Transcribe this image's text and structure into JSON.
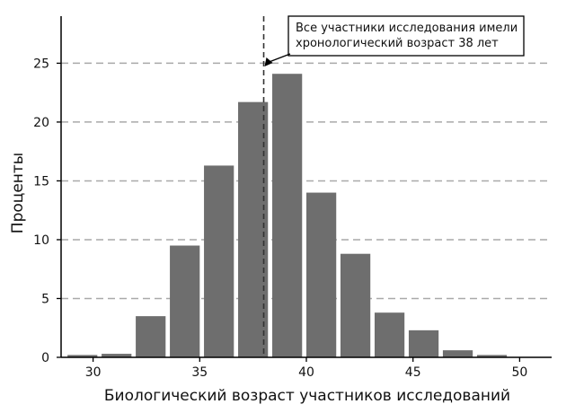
{
  "chart_data": {
    "type": "bar",
    "title": "",
    "xlabel": "Биологический возраст участников исследований",
    "ylabel": "Проценты",
    "xlim": [
      28.5,
      51.5
    ],
    "ylim": [
      0,
      29
    ],
    "bar_width": 1.4,
    "x_ticks": [
      30,
      35,
      40,
      45,
      50
    ],
    "y_ticks": [
      0,
      5,
      10,
      15,
      20,
      25
    ],
    "x_tick_labels": [
      "30",
      "35",
      "40",
      "45",
      "50"
    ],
    "y_tick_labels": [
      "0",
      "5",
      "10",
      "15",
      "20",
      "25"
    ],
    "grid": "horizontal dashed",
    "bars": [
      {
        "x": 29.5,
        "value": 0.2
      },
      {
        "x": 31.1,
        "value": 0.3
      },
      {
        "x": 32.7,
        "value": 3.5
      },
      {
        "x": 34.3,
        "value": 9.5
      },
      {
        "x": 35.9,
        "value": 16.3
      },
      {
        "x": 37.5,
        "value": 21.7
      },
      {
        "x": 39.1,
        "value": 24.1
      },
      {
        "x": 40.7,
        "value": 14.0
      },
      {
        "x": 42.3,
        "value": 8.8
      },
      {
        "x": 43.9,
        "value": 3.8
      },
      {
        "x": 45.5,
        "value": 2.3
      },
      {
        "x": 47.1,
        "value": 0.6
      },
      {
        "x": 48.7,
        "value": 0.2
      }
    ],
    "annotation": {
      "x": 38,
      "lines": [
        "Все участники исследования имели",
        "хронологический возраст 38 лет"
      ]
    }
  },
  "colors": {
    "bar": "#6e6e6e",
    "grid": "#a9a9a9",
    "axis": "#000000",
    "reference_line": "#333333"
  }
}
